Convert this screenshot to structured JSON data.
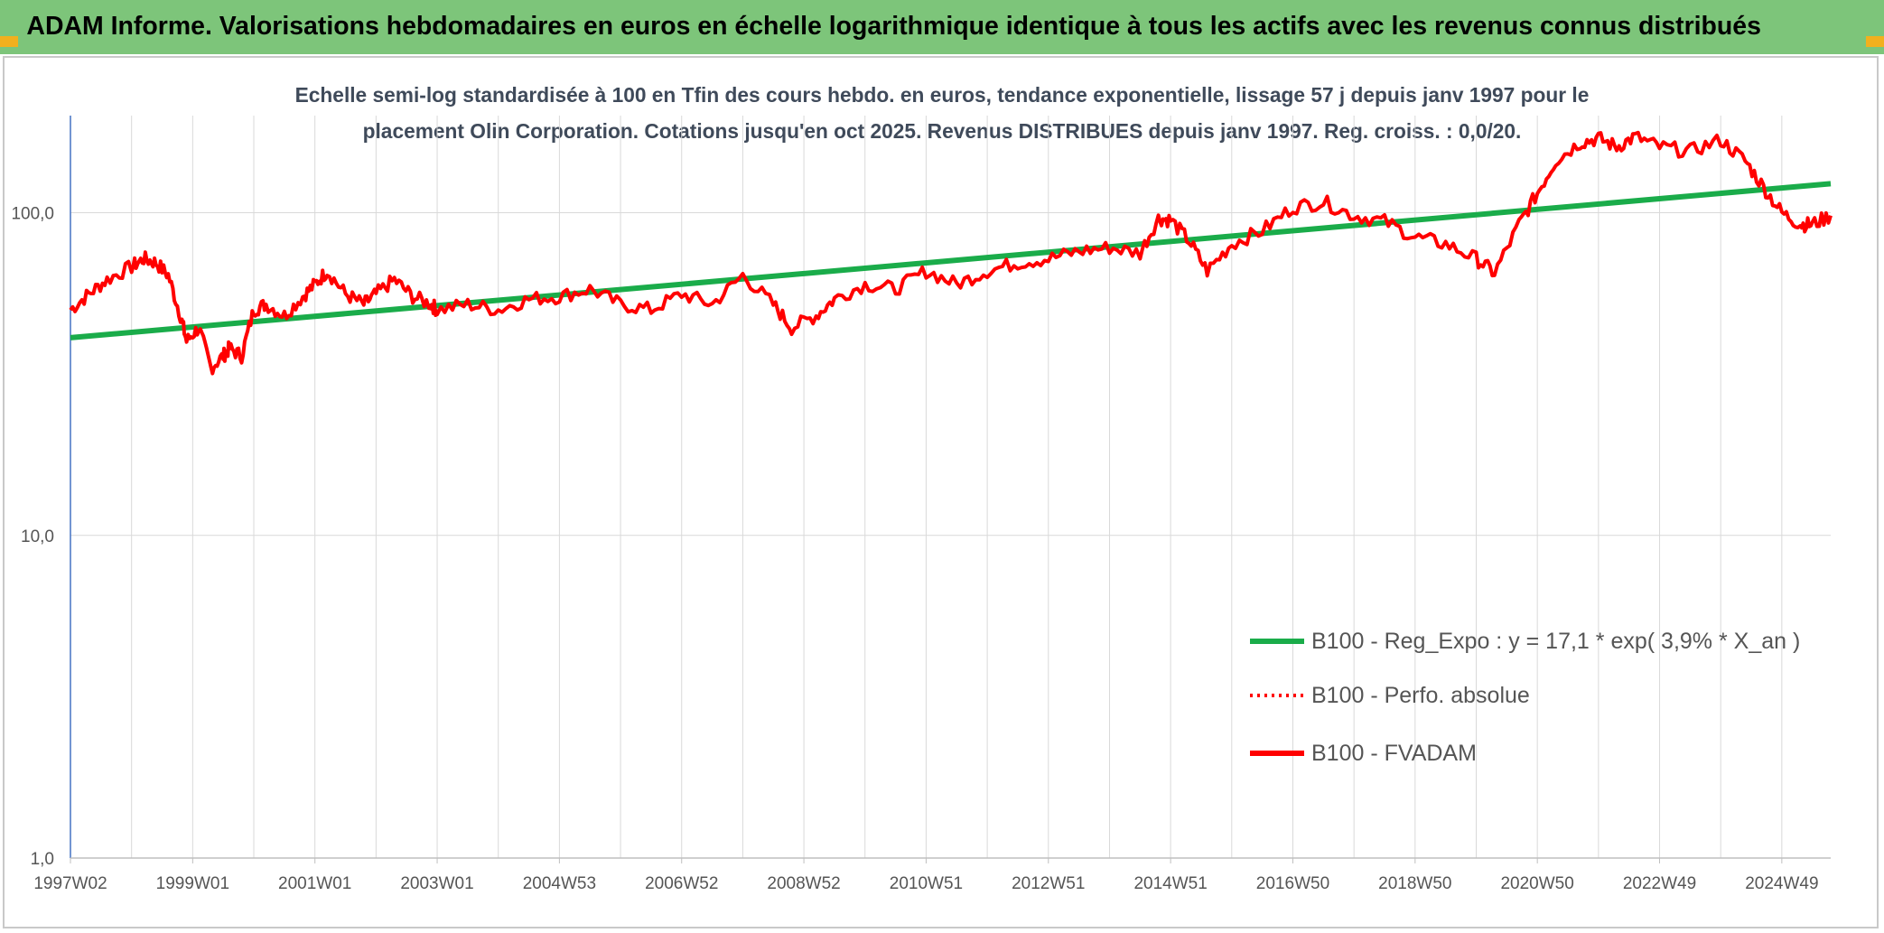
{
  "header": {
    "title": "ADAM Informe. Valorisations hebdomadaires en euros en échelle logarithmique identique à tous les actifs avec les revenus connus distribués"
  },
  "colors": {
    "banner": "#7dc57a",
    "accent_corner": "#f2b01e",
    "trend": "#1aac4a",
    "series": "#ff0000",
    "axis": "#4472c4",
    "grid": "#d9d9d9"
  },
  "chart_data": {
    "type": "line",
    "title_lines": [
      "Echelle semi-log standardisée à 100 en Tfin des cours hebdo. en euros, tendance exponentielle, lissage 57 j depuis janv 1997 pour le",
      "placement Olin Corporation. Cotations jusqu'en oct 2025. Revenus DISTRIBUES depuis janv 1997. Reg. croiss. : 0,0/20."
    ],
    "y_scale": "log",
    "ylim": [
      1,
      200
    ],
    "y_ticks": [
      {
        "value": 1,
        "label": "1,0"
      },
      {
        "value": 10,
        "label": "10,0"
      },
      {
        "value": 100,
        "label": "100,0"
      }
    ],
    "xlim": [
      1997.0,
      2025.8
    ],
    "x_ticks": [
      {
        "x": 1997.0,
        "label": "1997W02"
      },
      {
        "x": 1999.0,
        "label": "1999W01"
      },
      {
        "x": 2001.0,
        "label": "2001W01"
      },
      {
        "x": 2003.0,
        "label": "2003W01"
      },
      {
        "x": 2005.0,
        "label": "2004W53"
      },
      {
        "x": 2007.0,
        "label": "2006W52"
      },
      {
        "x": 2009.0,
        "label": "2008W52"
      },
      {
        "x": 2011.0,
        "label": "2010W51"
      },
      {
        "x": 2013.0,
        "label": "2012W51"
      },
      {
        "x": 2015.0,
        "label": "2014W51"
      },
      {
        "x": 2017.0,
        "label": "2016W50"
      },
      {
        "x": 2019.0,
        "label": "2018W50"
      },
      {
        "x": 2021.0,
        "label": "2020W50"
      },
      {
        "x": 2023.0,
        "label": "2022W49"
      },
      {
        "x": 2025.0,
        "label": "2024W49"
      }
    ],
    "grid": "vertical-and-horizontal",
    "legend_position": "bottom-right",
    "series": [
      {
        "name": "B100 - Reg_Expo : y = 17,1 * exp( 3,9% *  X_an )",
        "style": "solid",
        "color": "#1aac4a",
        "x": [
          1997.0,
          2025.8
        ],
        "y": [
          41,
          123
        ]
      },
      {
        "name": "B100 - Perfo. absolue",
        "style": "dotted",
        "color": "#ff0000",
        "x": [],
        "y": []
      },
      {
        "name": "B100 - FVADAM",
        "style": "solid",
        "color": "#ff0000",
        "x": [
          1997.0,
          1997.3,
          1997.6,
          1998.0,
          1998.2,
          1998.4,
          1998.6,
          1998.8,
          1998.9,
          1999.1,
          1999.3,
          1999.5,
          1999.6,
          1999.8,
          2000.0,
          2000.2,
          2000.5,
          2000.8,
          2001.0,
          2001.2,
          2001.5,
          2001.8,
          2002.0,
          2002.3,
          2002.6,
          2002.9,
          2003.0,
          2003.5,
          2004.0,
          2004.5,
          2005.0,
          2005.5,
          2006.0,
          2006.5,
          2007.0,
          2007.5,
          2008.0,
          2008.5,
          2008.8,
          2009.2,
          2009.5,
          2010.0,
          2010.5,
          2011.0,
          2011.5,
          2012.0,
          2012.5,
          2013.0,
          2013.5,
          2014.0,
          2014.5,
          2014.8,
          2015.0,
          2015.3,
          2015.6,
          2016.0,
          2016.5,
          2017.0,
          2017.5,
          2018.0,
          2018.5,
          2019.0,
          2019.5,
          2020.0,
          2020.3,
          2020.7,
          2021.0,
          2021.3,
          2021.7,
          2022.0,
          2022.3,
          2022.6,
          2023.0,
          2023.5,
          2024.0,
          2024.4,
          2024.7,
          2025.0,
          2025.3,
          2025.5,
          2025.8
        ],
        "y": [
          50,
          56,
          62,
          68,
          72,
          70,
          64,
          48,
          40,
          44,
          33,
          36,
          38,
          36,
          50,
          52,
          48,
          55,
          60,
          66,
          56,
          52,
          56,
          62,
          55,
          52,
          50,
          52,
          50,
          54,
          55,
          58,
          52,
          50,
          56,
          52,
          64,
          52,
          44,
          48,
          54,
          60,
          58,
          66,
          60,
          66,
          70,
          72,
          76,
          78,
          75,
          96,
          95,
          82,
          66,
          80,
          88,
          104,
          108,
          98,
          94,
          84,
          80,
          72,
          65,
          92,
          115,
          145,
          165,
          170,
          160,
          172,
          160,
          155,
          168,
          145,
          120,
          100,
          92,
          92,
          98
        ]
      }
    ]
  }
}
